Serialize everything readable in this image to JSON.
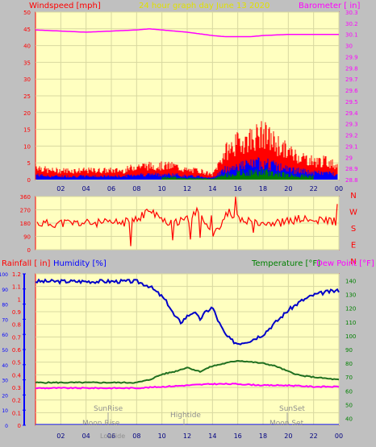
{
  "panel_top": {
    "title": "24 hour graph day   June 13 2020",
    "left_label": "Windspeed [mph]",
    "right_label": "Barometer [ in]",
    "x_ticks": [
      "02",
      "04",
      "06",
      "08",
      "10",
      "12",
      "14",
      "16",
      "18",
      "20",
      "22",
      "00"
    ],
    "y_left_ticks": [
      "0",
      "5",
      "10",
      "15",
      "20",
      "25",
      "30",
      "35",
      "40",
      "45",
      "50"
    ],
    "y_right_ticks": [
      "28.8",
      "28.9",
      "29",
      "29.1",
      "29.2",
      "29.3",
      "29.4",
      "29.5",
      "29.6",
      "29.7",
      "29.8",
      "29.9",
      "30",
      "30.1",
      "30.2",
      "30.3"
    ]
  },
  "panel_wind": {
    "y_ticks": [
      "0",
      "90",
      "180",
      "270",
      "360"
    ],
    "dir_labels": [
      "N",
      "W",
      "S",
      "E",
      "N"
    ]
  },
  "panel_bottom": {
    "rain_label": "Rainfall [ in]",
    "humidity_label": "Humidity [%]",
    "temp_label": "Temperature [°F]",
    "dew_label": "Dew Point [°F]",
    "rain_ticks": [
      "0",
      "0.1",
      "0.2",
      "0.3",
      "0.4",
      "0.5",
      "0.6",
      "0.7",
      "0.8",
      "0.9",
      "1",
      "1.1",
      "1.2"
    ],
    "humidity_ticks": [
      "0",
      "10",
      "20",
      "30",
      "40",
      "50",
      "60",
      "70",
      "80",
      "90",
      "100"
    ],
    "temp_ticks": [
      "40",
      "50",
      "60",
      "70",
      "80",
      "90",
      "100",
      "110",
      "120",
      "130",
      "140"
    ],
    "x_ticks": [
      "02",
      "04",
      "06",
      "08",
      "10",
      "12",
      "14",
      "16",
      "18",
      "20",
      "22",
      "00"
    ],
    "events": {
      "sunrise": "SunRise",
      "moonrise": "Moon Rise",
      "lowtide": "Lowtide",
      "hightide": "Hightide",
      "sunset": "SunSet",
      "moonset": "Moon Set"
    }
  },
  "colors": {
    "plot_bg": "#ffffc0",
    "grid": "#d8d8a0",
    "frame": "#ff0000",
    "wind": "#ff0000",
    "gust": "#0000ff",
    "wind_green": "#008000",
    "barometer": "#ff00ff",
    "humidity": "#0000c8",
    "temperature": "#207020",
    "dewpoint": "#ff00ff",
    "title": "#e0e000"
  },
  "chart_data": [
    {
      "type": "line",
      "x_unit": "hour of day",
      "xlim": [
        0,
        24
      ],
      "ylim_left": [
        0,
        50
      ],
      "ylim_right": [
        28.8,
        30.3
      ],
      "series": [
        {
          "name": "Windspeed [mph]",
          "axis": "left",
          "x": [
            0,
            1,
            2,
            3,
            4,
            5,
            6,
            7,
            8,
            9,
            10,
            11,
            12,
            13,
            14,
            15,
            16,
            17,
            18,
            19,
            20,
            21,
            22,
            23,
            24
          ],
          "y": [
            3,
            2,
            2,
            2,
            2,
            2,
            2,
            2,
            3,
            3,
            3,
            3,
            2,
            2,
            1,
            6,
            8,
            9,
            10,
            8,
            6,
            5,
            4,
            4,
            3
          ]
        },
        {
          "name": "Barometer [ in]",
          "axis": "right",
          "x": [
            0,
            2,
            4,
            6,
            8,
            9,
            10,
            12,
            14,
            15,
            16,
            17,
            18,
            20,
            22,
            24
          ],
          "y": [
            30.14,
            30.13,
            30.12,
            30.13,
            30.14,
            30.15,
            30.14,
            30.12,
            30.09,
            30.08,
            30.08,
            30.08,
            30.09,
            30.1,
            30.1,
            30.1
          ]
        }
      ]
    },
    {
      "type": "scatter",
      "x_unit": "hour of day",
      "xlim": [
        0,
        24
      ],
      "ylim": [
        0,
        360
      ],
      "series": [
        {
          "name": "Wind direction",
          "x": [
            0,
            1,
            2,
            3,
            4,
            5,
            6,
            7,
            8,
            9,
            10,
            11,
            12,
            13,
            14,
            15,
            16,
            17,
            18,
            19,
            20,
            21,
            22,
            23,
            24
          ],
          "y": [
            180,
            175,
            180,
            180,
            180,
            180,
            180,
            185,
            200,
            270,
            200,
            180,
            200,
            270,
            90,
            230,
            210,
            200,
            190,
            180,
            190,
            210,
            190,
            200,
            190
          ]
        }
      ]
    },
    {
      "type": "line",
      "x_unit": "hour of day",
      "xlim": [
        0,
        24
      ],
      "ylim_rain": [
        0,
        1.2
      ],
      "ylim_humidity": [
        0,
        100
      ],
      "ylim_temp": [
        35,
        145
      ],
      "series": [
        {
          "name": "Humidity [%]",
          "axis": "humidity",
          "x": [
            0,
            2,
            4,
            6,
            8,
            9,
            10,
            10.5,
            11,
            11.5,
            12,
            12.5,
            13,
            13.5,
            14,
            14.5,
            15,
            15.5,
            16,
            17,
            18,
            19,
            20,
            21,
            22,
            23,
            24
          ],
          "y": [
            95,
            95,
            95,
            95,
            95,
            92,
            85,
            80,
            72,
            68,
            72,
            75,
            70,
            75,
            78,
            68,
            60,
            56,
            54,
            56,
            60,
            68,
            76,
            82,
            86,
            88,
            89
          ]
        },
        {
          "name": "Temperature [°F]",
          "axis": "temp",
          "x": [
            0,
            2,
            4,
            6,
            8,
            9,
            10,
            11,
            12,
            13,
            14,
            15,
            16,
            17,
            18,
            19,
            20,
            21,
            22,
            23,
            24
          ],
          "y": [
            66,
            66,
            66,
            66,
            66,
            68,
            72,
            74,
            77,
            74,
            78,
            80,
            82,
            81,
            80,
            78,
            74,
            71,
            70,
            69,
            68
          ]
        },
        {
          "name": "Dew Point [°F]",
          "axis": "temp",
          "x": [
            0,
            2,
            4,
            6,
            8,
            10,
            12,
            14,
            16,
            18,
            20,
            22,
            24
          ],
          "y": [
            62,
            62,
            62,
            62,
            62,
            63,
            64,
            65,
            65,
            64,
            64,
            63,
            63
          ]
        },
        {
          "name": "Rainfall [ in]",
          "axis": "rain",
          "x": [
            0,
            24
          ],
          "y": [
            0,
            0
          ]
        }
      ]
    }
  ]
}
